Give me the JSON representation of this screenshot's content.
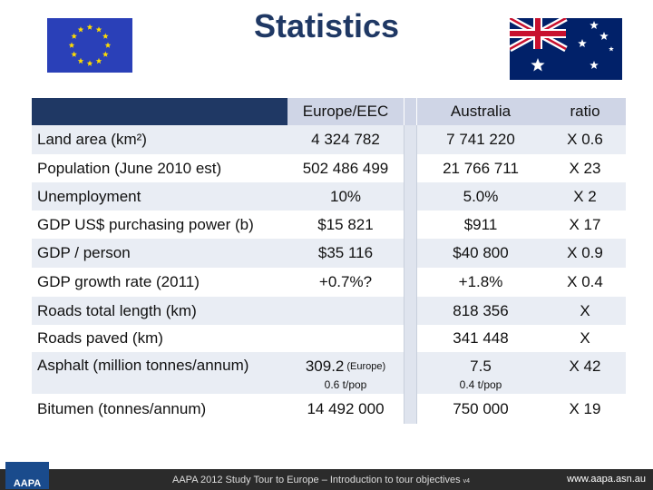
{
  "header": {
    "title": "Statistics"
  },
  "table": {
    "columns": [
      "Europe/EEC",
      "Australia",
      "ratio"
    ],
    "rows": [
      [
        "Land area (km²)",
        "4 324 782",
        "7 741 220",
        "X 0.6"
      ],
      [
        "Population (June 2010 est)",
        "502 486 499",
        "21 766 711",
        "X 23"
      ],
      [
        "Unemployment",
        "10%",
        "5.0%",
        "X 2"
      ],
      [
        "GDP US$ purchasing power (b)",
        "$15 821",
        "$911",
        "X 17"
      ],
      [
        "GDP / person",
        "$35 116",
        "$40 800",
        "X 0.9"
      ],
      [
        "GDP growth rate (2011)",
        "+0.7%?",
        "+1.8%",
        "X 0.4"
      ],
      [
        "Roads total length (km)",
        null,
        "818 356",
        "X"
      ],
      [
        "Roads paved (km)",
        null,
        "341 448",
        "X"
      ],
      [
        "Asphalt (million tonnes/annum)",
        "309.2",
        "7.5",
        "X 42"
      ],
      [
        "Bitumen (tonnes/annum)",
        "14 492 000",
        "750 000",
        "X 19"
      ]
    ],
    "asphalt_notes": {
      "europe_suffix": "(Europe)",
      "europe_per_capita": "0.6 t/pop",
      "australia_per_capita": "0.4 t/pop"
    }
  },
  "footer": {
    "logo": "AAPA",
    "text": "AAPA 2012 Study Tour to Europe – Introduction to tour objectives",
    "version": "v4",
    "url": "www.aapa.asn.au"
  }
}
